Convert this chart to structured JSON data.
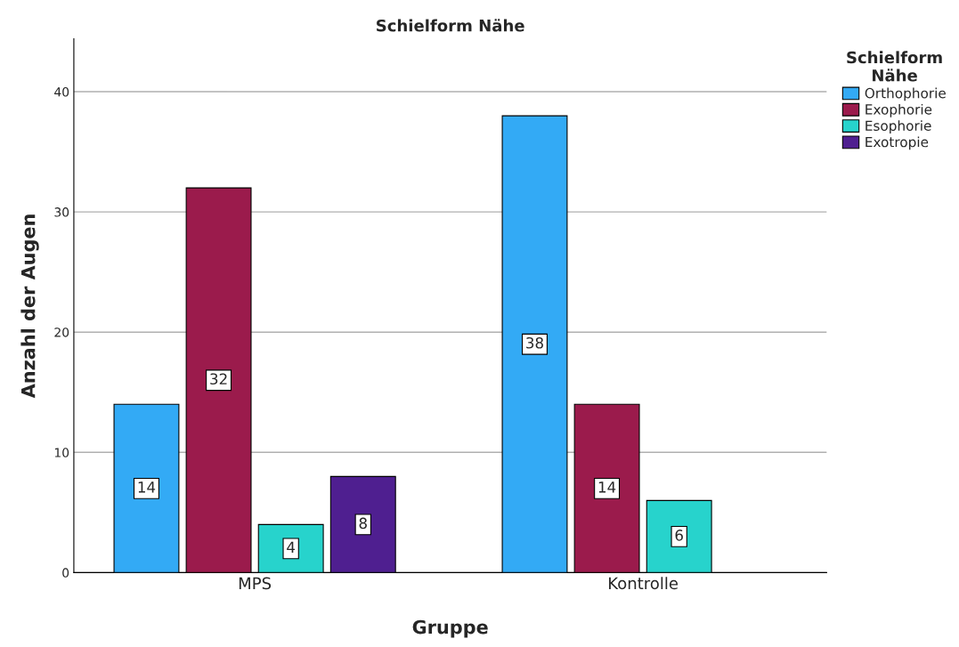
{
  "chart_data": {
    "type": "bar",
    "title": "Schielform Nähe",
    "xlabel": "Gruppe",
    "ylabel": "Anzahl der Augen",
    "legend_title": "Schielform\nNähe",
    "categories": [
      "MPS",
      "Kontrolle"
    ],
    "series": [
      {
        "name": "Orthophorie",
        "color": "#33aaf5",
        "values": [
          14,
          38
        ]
      },
      {
        "name": "Exophorie",
        "color": "#9b1b4c",
        "values": [
          32,
          14
        ]
      },
      {
        "name": "Esophorie",
        "color": "#27d3cc",
        "values": [
          4,
          6
        ]
      },
      {
        "name": "Exotropie",
        "color": "#4f1f90",
        "values": [
          8,
          null
        ]
      }
    ],
    "ylim": [
      0,
      44.4
    ],
    "yticks": [
      0,
      10,
      20,
      30,
      40
    ],
    "grid": "y",
    "legend": "top right",
    "data_labels": true
  }
}
